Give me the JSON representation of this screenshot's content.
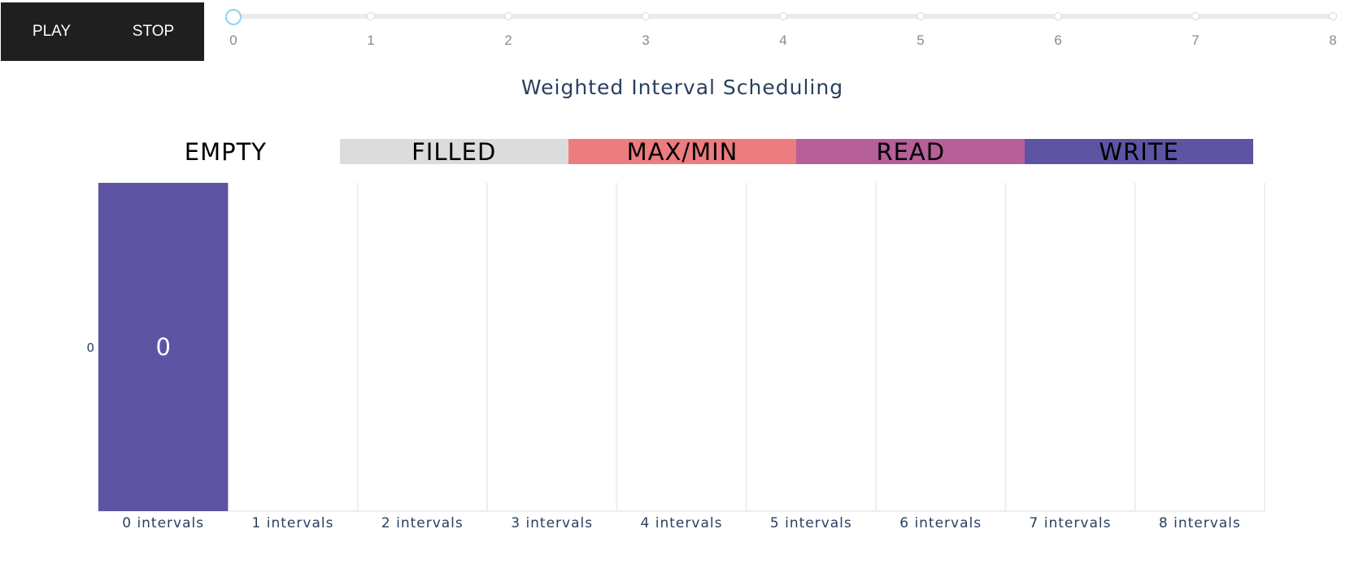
{
  "controls": {
    "play_label": "PLAY",
    "stop_label": "STOP"
  },
  "slider": {
    "steps": [
      "0",
      "1",
      "2",
      "3",
      "4",
      "5",
      "6",
      "7",
      "8"
    ],
    "current_index": 0
  },
  "colors": {
    "empty": "#ffffff",
    "filled": "#dcdcdc",
    "maxmin": "#ec7c7e",
    "read": "#b65f99",
    "write": "#5d54a4",
    "grid": "#ebeef5"
  },
  "chart_data": {
    "type": "heatmap",
    "title": "Weighted Interval Scheduling",
    "legend": [
      {
        "label": "EMPTY",
        "color": "#ffffff"
      },
      {
        "label": "FILLED",
        "color": "#dcdcdc"
      },
      {
        "label": "MAX/MIN",
        "color": "#ec7c7e"
      },
      {
        "label": "READ",
        "color": "#b65f99"
      },
      {
        "label": "WRITE",
        "color": "#5d54a4"
      }
    ],
    "x_categories": [
      "0 intervals",
      "1 intervals",
      "2 intervals",
      "3 intervals",
      "4 intervals",
      "5 intervals",
      "6 intervals",
      "7 intervals",
      "8 intervals"
    ],
    "y_categories": [
      "0"
    ],
    "cells": [
      {
        "x": 0,
        "y": 0,
        "state": "WRITE",
        "text": "0"
      }
    ]
  }
}
